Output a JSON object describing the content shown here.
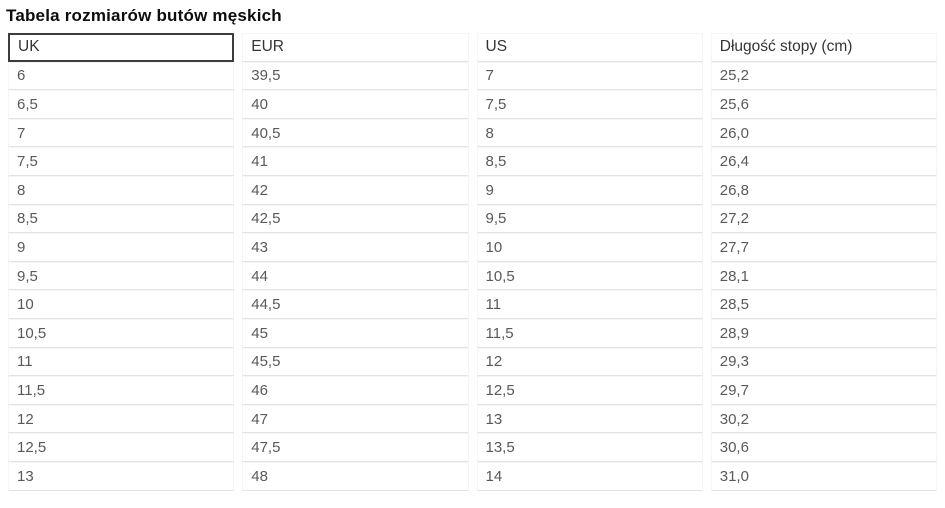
{
  "page": {
    "title": "Tabela rozmiarów butów męskich"
  },
  "chart_data": {
    "type": "table",
    "title": "Tabela rozmiarów butów męskich",
    "columns": [
      "UK",
      "EUR",
      "US",
      "Długość stopy (cm)"
    ],
    "focused_header": "UK",
    "rows": [
      [
        "6",
        "39,5",
        "7",
        "25,2"
      ],
      [
        "6,5",
        "40",
        "7,5",
        "25,6"
      ],
      [
        "7",
        "40,5",
        "8",
        "26,0"
      ],
      [
        "7,5",
        "41",
        "8,5",
        "26,4"
      ],
      [
        "8",
        "42",
        "9",
        "26,8"
      ],
      [
        "8,5",
        "42,5",
        "9,5",
        "27,2"
      ],
      [
        "9",
        "43",
        "10",
        "27,7"
      ],
      [
        "9,5",
        "44",
        "10,5",
        "28,1"
      ],
      [
        "10",
        "44,5",
        "11",
        "28,5"
      ],
      [
        "10,5",
        "45",
        "11,5",
        "28,9"
      ],
      [
        "11",
        "45,5",
        "12",
        "29,3"
      ],
      [
        "11,5",
        "46",
        "12,5",
        "29,7"
      ],
      [
        "12",
        "47",
        "13",
        "30,2"
      ],
      [
        "12,5",
        "47,5",
        "13,5",
        "30,6"
      ],
      [
        "13",
        "48",
        "14",
        "31,0"
      ]
    ]
  },
  "colors": {
    "background": "#ffffff",
    "title_text": "#0d0d0d",
    "header_text": "#343434",
    "cell_text": "#595959",
    "row_border": "#e3e3e3",
    "cell_side_border": "#f5f5f5",
    "focus_border": "#3d3d3d"
  }
}
